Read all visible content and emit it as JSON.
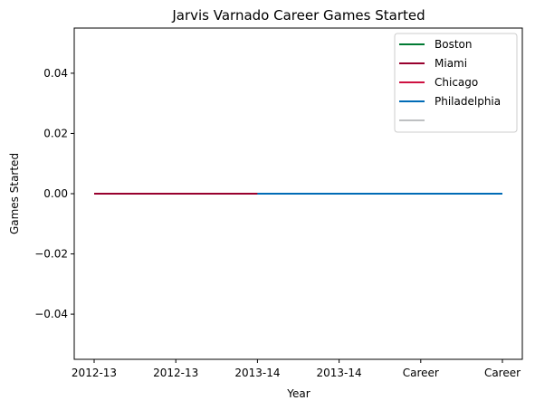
{
  "chart_data": {
    "type": "line",
    "title": "Jarvis Varnado Career Games Started",
    "xlabel": "Year",
    "ylabel": "Games Started",
    "categories": [
      "2012-13",
      "2012-13",
      "2013-14",
      "2013-14",
      "Career",
      "Career"
    ],
    "ylim": [
      -0.055,
      0.055
    ],
    "yticks": [
      -0.04,
      -0.02,
      0.0,
      0.02,
      0.04
    ],
    "ytick_labels": [
      "−0.04",
      "−0.02",
      "0.00",
      "0.02",
      "0.04"
    ],
    "grid": false,
    "legend_position": "top-right",
    "series": [
      {
        "name": "Boston",
        "color": "#007a33",
        "values": [
          0,
          0,
          0,
          null,
          null,
          null
        ]
      },
      {
        "name": "Miami",
        "color": "#98002e",
        "values": [
          0,
          0,
          0,
          null,
          null,
          null
        ]
      },
      {
        "name": "Chicago",
        "color": "#ce1141",
        "values": [
          null,
          null,
          null,
          null,
          null,
          null
        ]
      },
      {
        "name": "Philadelphia",
        "color": "#006bb6",
        "values": [
          null,
          null,
          0,
          0,
          0,
          0
        ]
      },
      {
        "name": "",
        "color": "#bec0c2",
        "values": [
          null,
          null,
          null,
          null,
          null,
          null
        ]
      }
    ]
  }
}
